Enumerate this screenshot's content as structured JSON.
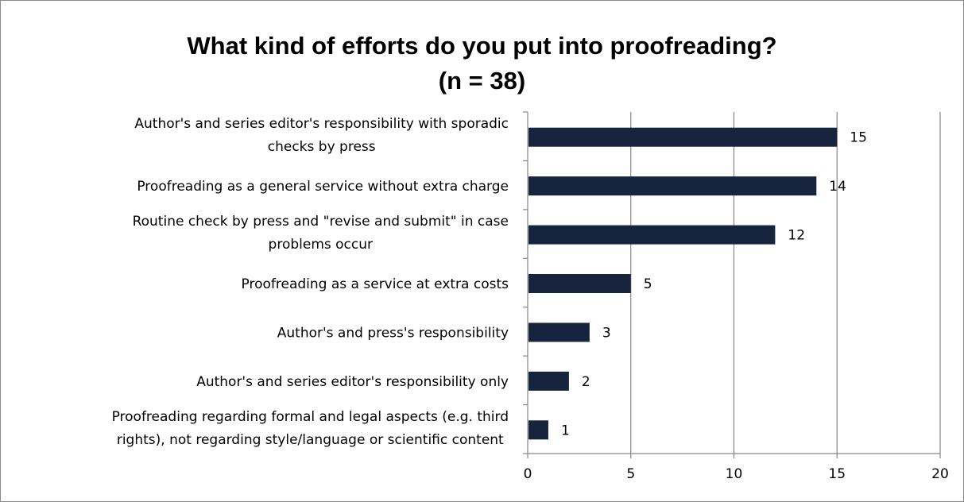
{
  "chart_data": {
    "type": "bar",
    "orientation": "horizontal",
    "title_lines": [
      "What kind of efforts do you put into proofreading?",
      "(n = 38)"
    ],
    "categories": [
      [
        "Author's and series editor's responsibility with sporadic",
        "checks by press"
      ],
      [
        "Proofreading as a general service without extra charge"
      ],
      [
        "Routine check by press and \"revise and submit\" in case",
        "problems occur"
      ],
      [
        "Proofreading as a service at extra costs"
      ],
      [
        "Author's and press's responsibility"
      ],
      [
        "Author's and series editor's responsibility only"
      ],
      [
        "Proofreading regarding formal and legal aspects (e.g. third",
        "rights), not regarding style/language or scientific content"
      ]
    ],
    "values": [
      15,
      14,
      12,
      5,
      3,
      2,
      1
    ],
    "data_labels": [
      "15",
      "14",
      "12",
      "5",
      "3",
      "2",
      "1"
    ],
    "xlim": [
      0,
      20
    ],
    "xticks": [
      0,
      5,
      10,
      15,
      20
    ],
    "xtick_labels": [
      "0",
      "5",
      "10",
      "15",
      "20"
    ],
    "grid": "vertical major gridlines",
    "legend": "none",
    "bar_color": "#17243d",
    "axis_color": "#868686"
  }
}
